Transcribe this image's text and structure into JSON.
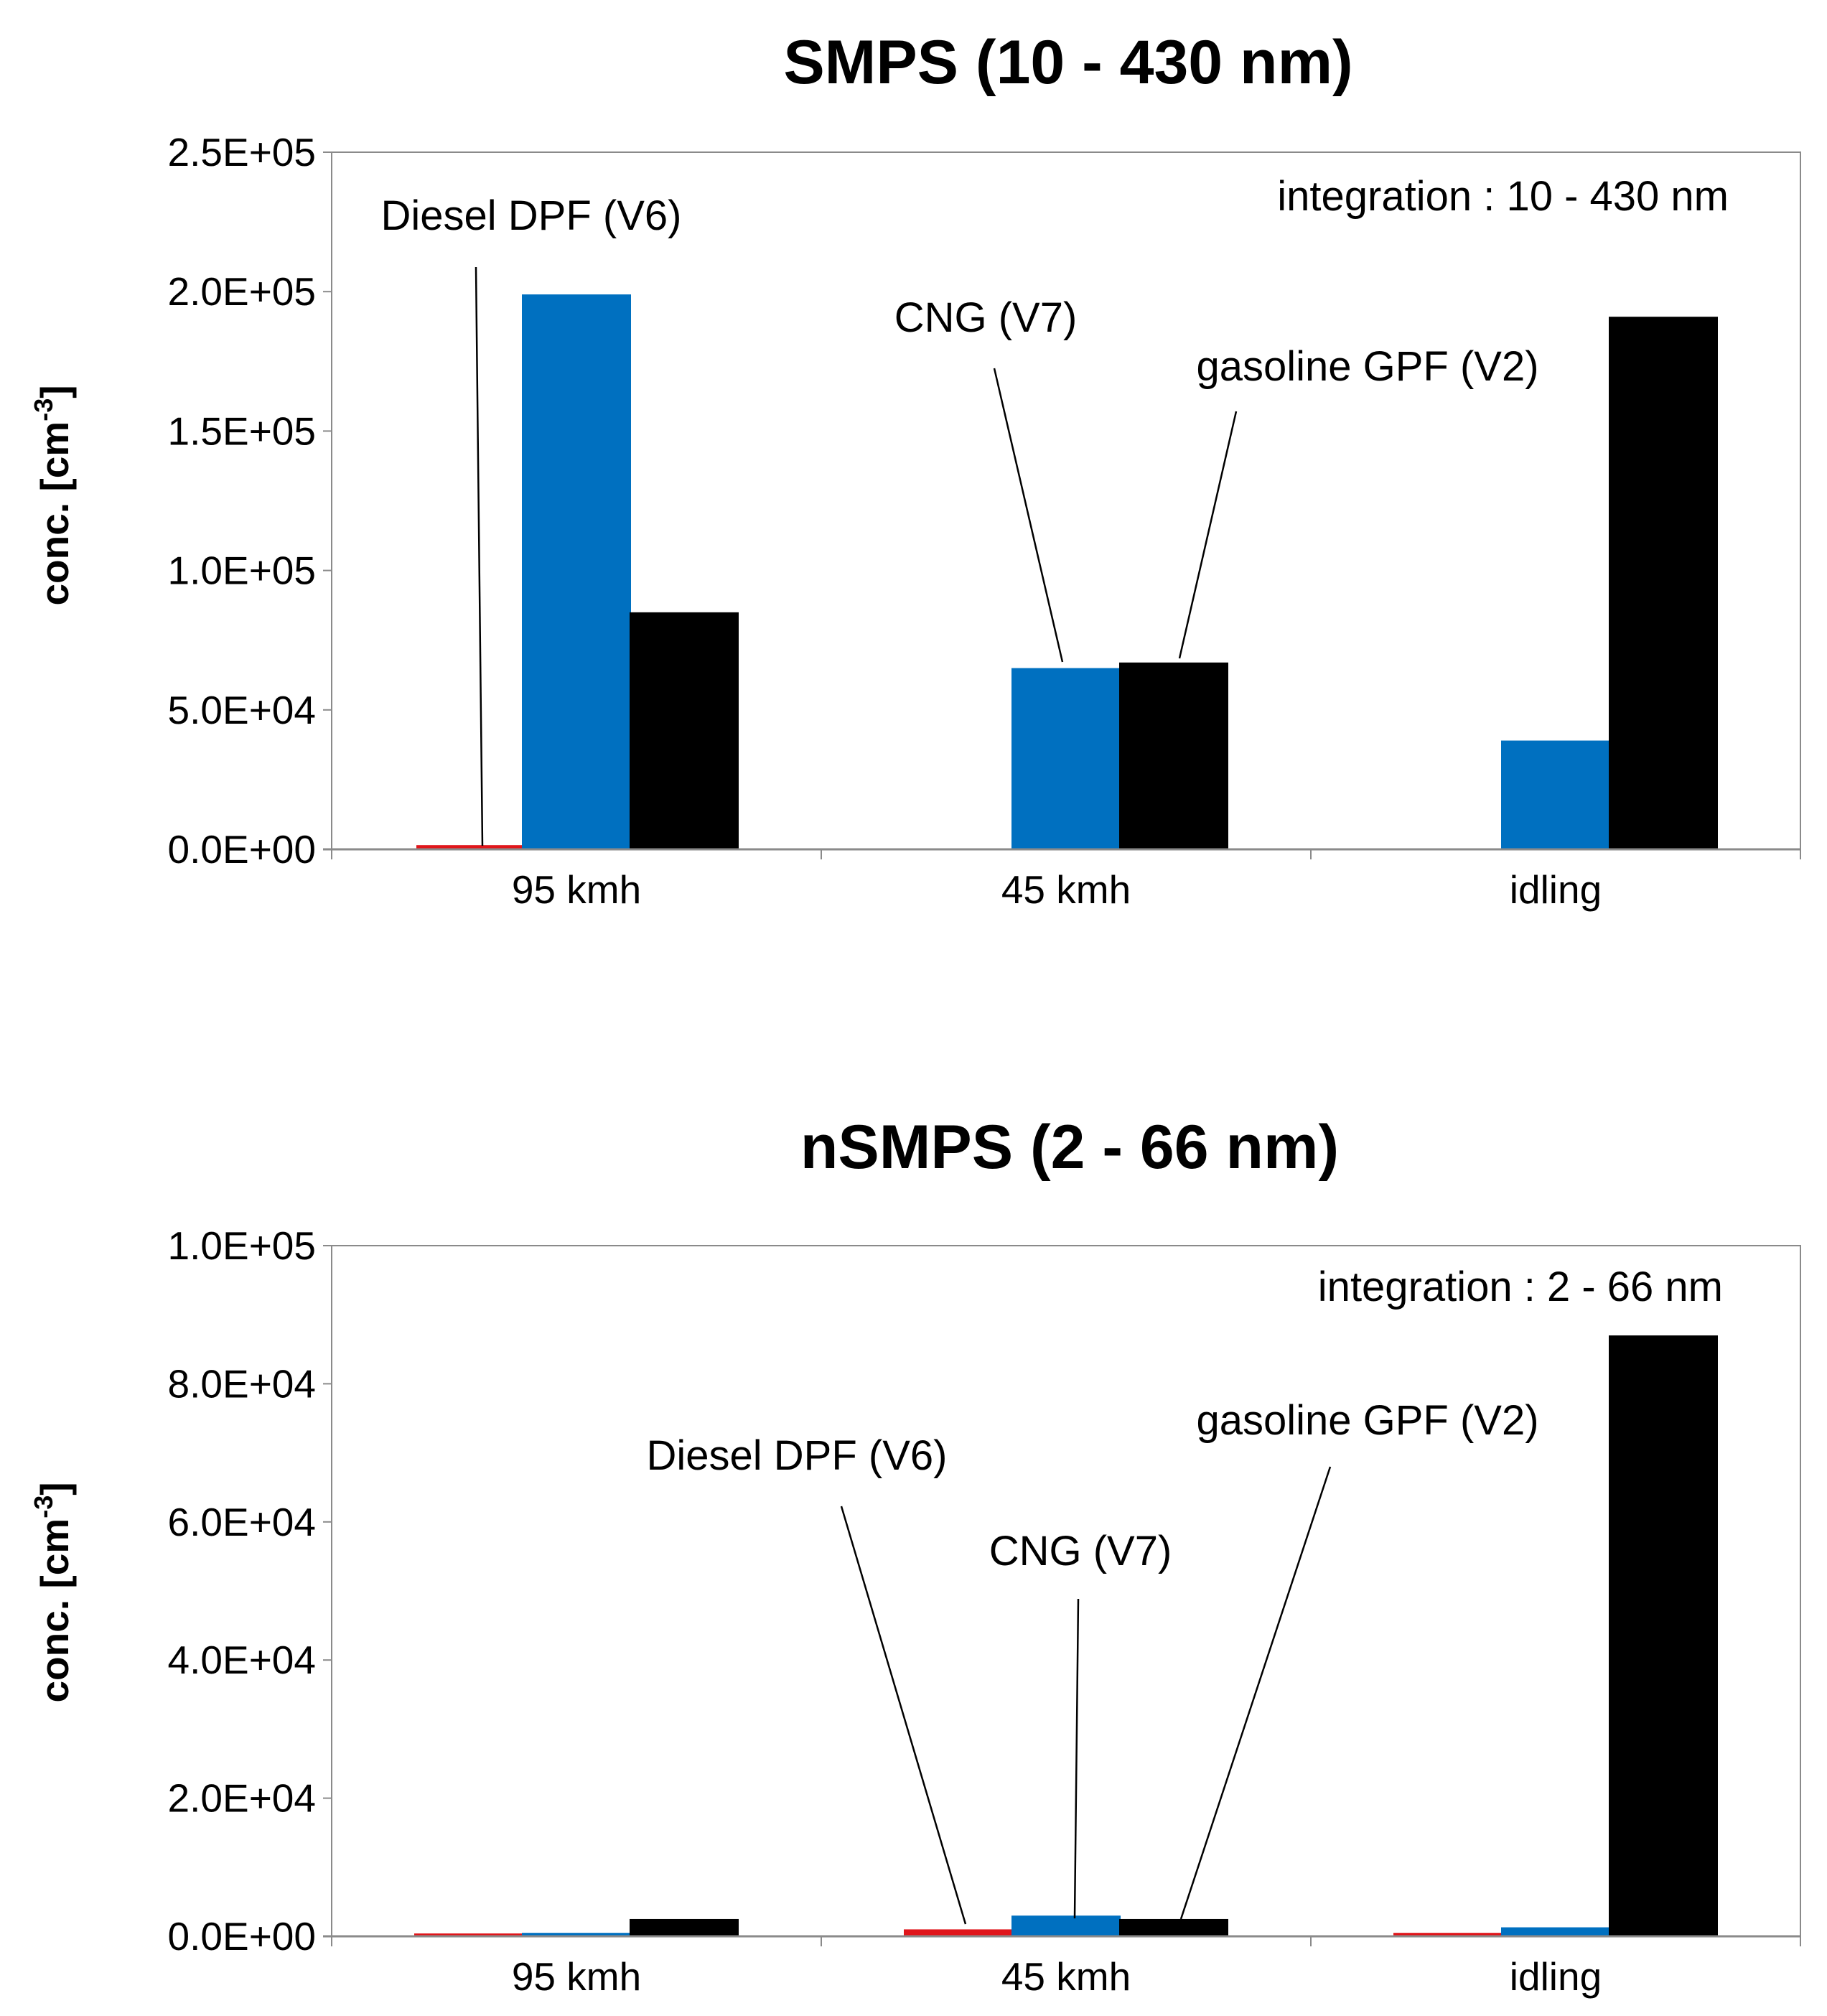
{
  "chart_data": [
    {
      "type": "bar",
      "title": "SMPS (10 - 430 nm)",
      "ylabel": "conc. [cm",
      "ylabel_sup": "-3",
      "ylabel_close": "]",
      "xlabel": "",
      "categories": [
        "95 kmh",
        "45 kmh",
        "idling"
      ],
      "ylim": [
        0,
        250000
      ],
      "yticks": [
        0,
        50000,
        100000,
        150000,
        200000,
        250000
      ],
      "ytick_labels": [
        "0.0E+00",
        "5.0E+04",
        "1.0E+05",
        "1.5E+05",
        "2.0E+05",
        "2.5E+05"
      ],
      "grid": false,
      "series": [
        {
          "name": "Diesel DPF (V6)",
          "color": "#e0161b",
          "values": [
            1500,
            0,
            0
          ]
        },
        {
          "name": "CNG (V7)",
          "color": "#0070c0",
          "values": [
            199000,
            65000,
            39000
          ]
        },
        {
          "name": "gasoline GPF (V2)",
          "color": "#000000",
          "values": [
            85000,
            67000,
            191000
          ]
        }
      ],
      "annotation": "integration : 10 - 430 nm",
      "callouts": [
        {
          "label": "Diesel DPF (V6)",
          "series": 0,
          "category": 0
        },
        {
          "label": "CNG (V7)",
          "series": 1,
          "category": 1
        },
        {
          "label": "gasoline GPF (V2)",
          "series": 2,
          "category": 1
        }
      ]
    },
    {
      "type": "bar",
      "title": "nSMPS (2 - 66 nm)",
      "ylabel": "conc. [cm",
      "ylabel_sup": "-3",
      "ylabel_close": "]",
      "xlabel": "",
      "categories": [
        "95 kmh",
        "45 kmh",
        "idling"
      ],
      "ylim": [
        0,
        100000
      ],
      "yticks": [
        0,
        20000,
        40000,
        60000,
        80000,
        100000
      ],
      "ytick_labels": [
        "0.0E+00",
        "2.0E+04",
        "4.0E+04",
        "6.0E+04",
        "8.0E+04",
        "1.0E+05"
      ],
      "grid": false,
      "series": [
        {
          "name": "Diesel DPF (V6)",
          "color": "#e0161b",
          "values": [
            400,
            1000,
            500
          ]
        },
        {
          "name": "CNG (V7)",
          "color": "#0070c0",
          "values": [
            500,
            3000,
            1300
          ]
        },
        {
          "name": "gasoline GPF (V2)",
          "color": "#000000",
          "values": [
            2500,
            2500,
            87000
          ]
        }
      ],
      "annotation": "integration : 2 - 66 nm",
      "callouts": [
        {
          "label": "Diesel DPF (V6)",
          "series": 0,
          "category": 1
        },
        {
          "label": "CNG (V7)",
          "series": 1,
          "category": 1
        },
        {
          "label": "gasoline GPF (V2)",
          "series": 2,
          "category": 1
        }
      ]
    }
  ]
}
